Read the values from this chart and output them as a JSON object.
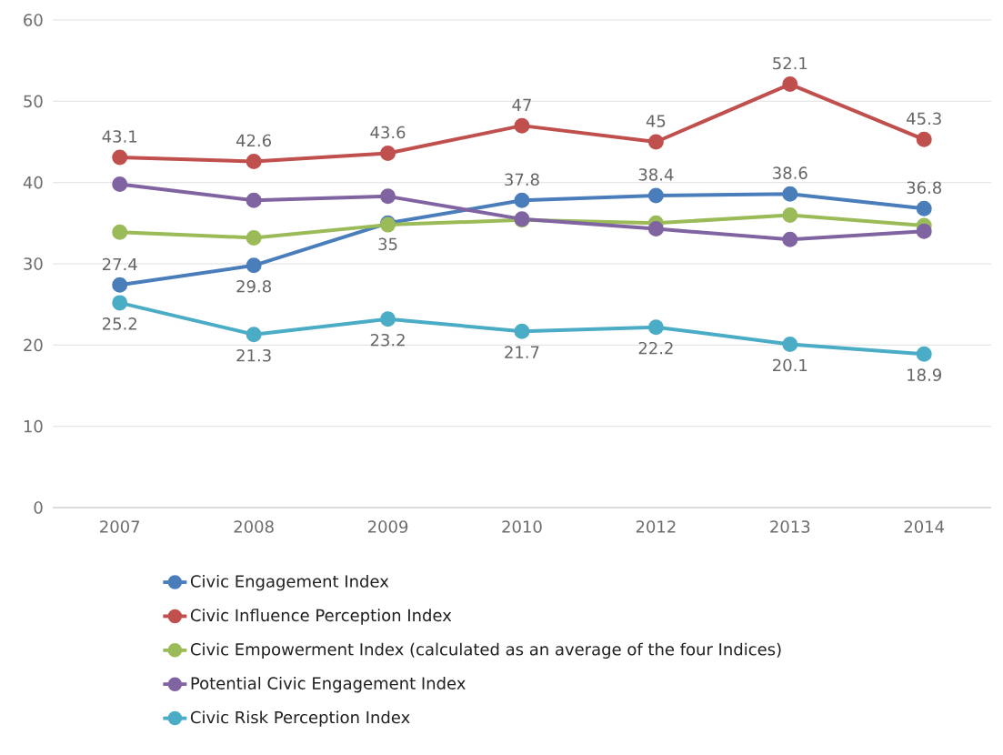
{
  "chart_data": {
    "type": "line",
    "categories": [
      "2007",
      "2008",
      "2009",
      "2010",
      "2012",
      "2013",
      "2014"
    ],
    "series": [
      {
        "name": "Civic Engagement Index",
        "color": "#4a7ebb",
        "values": [
          27.4,
          29.8,
          35,
          37.8,
          38.4,
          38.6,
          36.8
        ],
        "value_labels": [
          "27.4",
          "29.8",
          "35",
          "37.8",
          "38.4",
          "38.6",
          "36.8"
        ]
      },
      {
        "name": "Civic Influence Perception Index",
        "color": "#c0504d",
        "values": [
          43.1,
          42.6,
          43.6,
          47,
          45,
          52.1,
          45.3
        ],
        "value_labels": [
          "43.1",
          "42.6",
          "43.6",
          "47",
          "45",
          "52.1",
          "45.3"
        ]
      },
      {
        "name": "Civic Empowerment Index (calculated as an average of the four Indices)",
        "color": "#9bbb59",
        "values": [
          33.9,
          33.2,
          34.8,
          35.4,
          35.0,
          36.0,
          34.7
        ]
      },
      {
        "name": "Potential Civic Engagement Index",
        "color": "#8064a2",
        "values": [
          39.8,
          37.8,
          38.3,
          35.5,
          34.3,
          33.0,
          34.0
        ]
      },
      {
        "name": "Civic Risk Perception Index",
        "color": "#4bacc6",
        "values": [
          25.2,
          21.3,
          23.2,
          21.7,
          22.2,
          20.1,
          18.9
        ],
        "value_labels": [
          "25.2",
          "21.3",
          "23.2",
          "21.7",
          "22.2",
          "20.1",
          "18.9"
        ]
      }
    ],
    "ylim": [
      0,
      60
    ],
    "yticks": [
      0,
      10,
      20,
      30,
      40,
      50,
      60
    ],
    "grid": "y",
    "legend": "bottom",
    "marker": "circle",
    "line_style": "solid"
  }
}
